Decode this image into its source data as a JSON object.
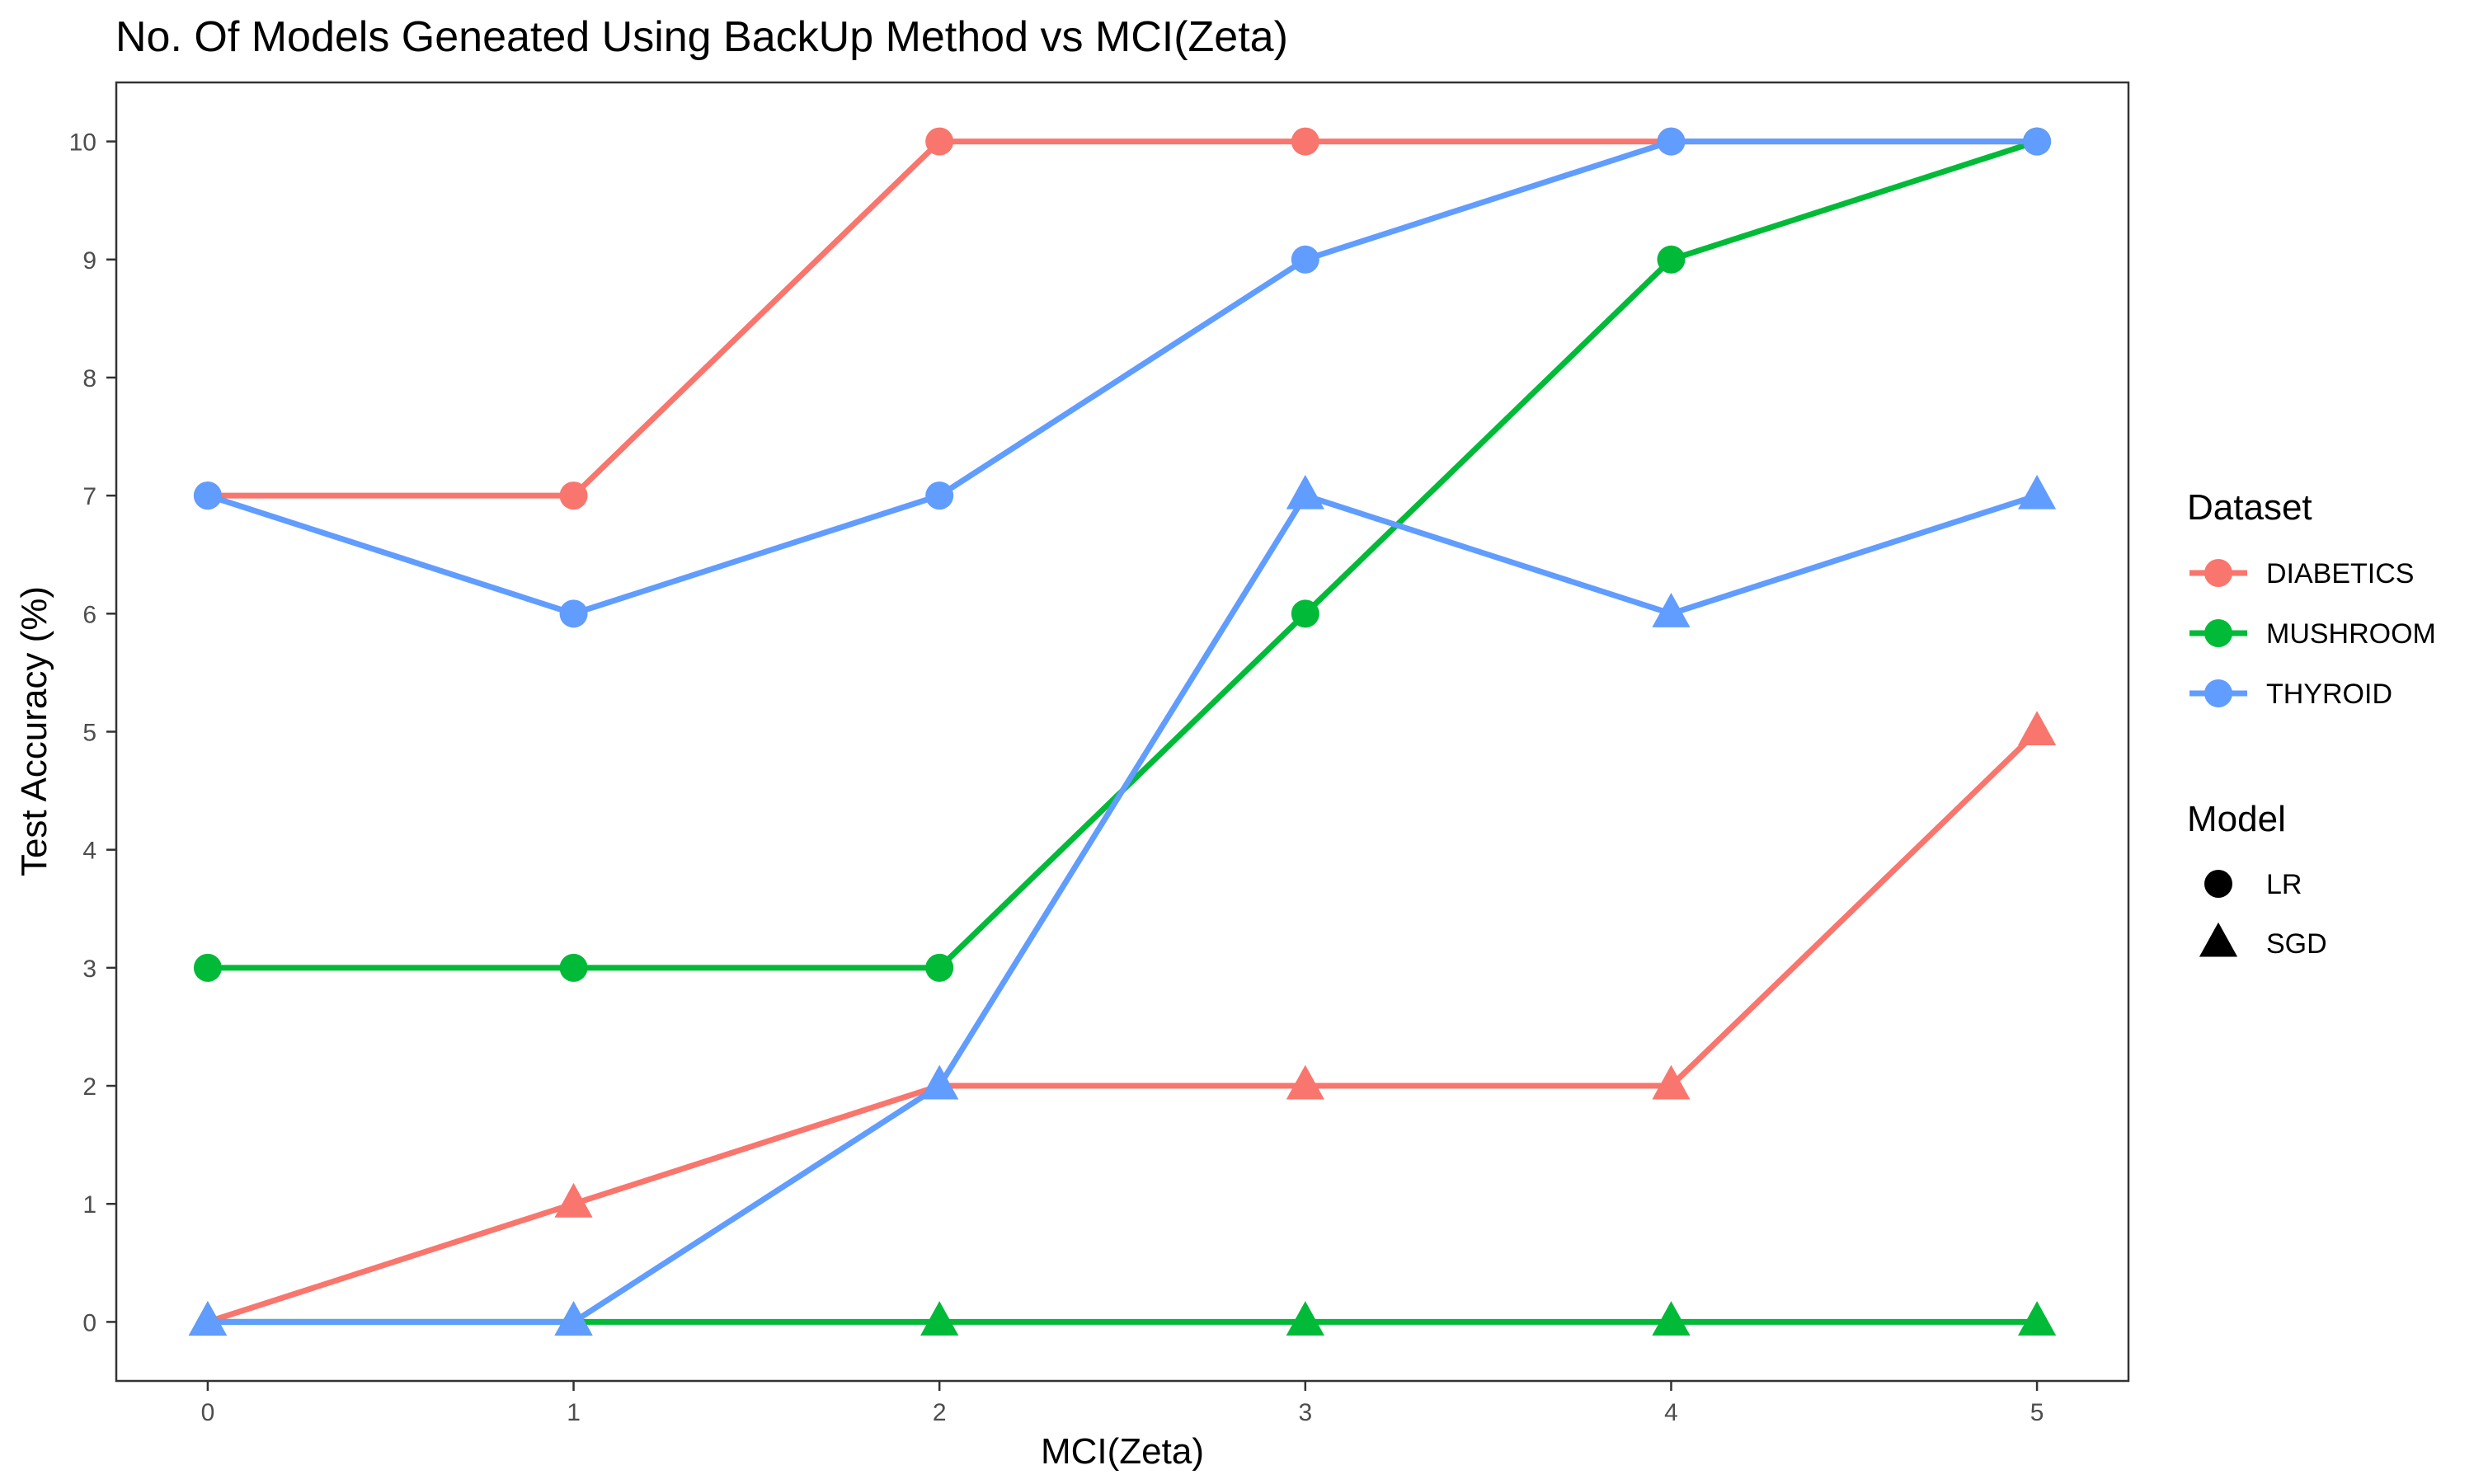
{
  "chart_data": {
    "type": "line",
    "title": "No. Of Models Geneated Using BackUp Method vs MCI(Zeta)",
    "xlabel": "MCI(Zeta)",
    "ylabel": "Test Accuracy (%)",
    "x": [
      0,
      1,
      2,
      3,
      4,
      5
    ],
    "xlim": [
      -0.25,
      5.25
    ],
    "ylim": [
      -0.5,
      10.5
    ],
    "y_ticks": [
      0,
      1,
      2,
      3,
      4,
      5,
      6,
      7,
      8,
      9,
      10
    ],
    "grid": false,
    "legend_position": "right",
    "colors": {
      "DIABETICS": "#F8766D",
      "MUSHROOM": "#00BA38",
      "THYROID": "#619CFF"
    },
    "legend": {
      "dataset_title": "Dataset",
      "datasets": [
        "DIABETICS",
        "MUSHROOM",
        "THYROID"
      ],
      "model_title": "Model",
      "models": [
        {
          "label": "LR",
          "shape": "circle"
        },
        {
          "label": "SGD",
          "shape": "triangle"
        }
      ]
    },
    "series": [
      {
        "dataset": "DIABETICS",
        "model": "LR",
        "shape": "circle",
        "values": [
          7,
          7,
          10,
          10,
          10,
          10
        ]
      },
      {
        "dataset": "DIABETICS",
        "model": "SGD",
        "shape": "triangle",
        "values": [
          0,
          1,
          2,
          2,
          2,
          5
        ]
      },
      {
        "dataset": "MUSHROOM",
        "model": "LR",
        "shape": "circle",
        "values": [
          3,
          3,
          3,
          6,
          9,
          10
        ]
      },
      {
        "dataset": "MUSHROOM",
        "model": "SGD",
        "shape": "triangle",
        "values": [
          0,
          0,
          0,
          0,
          0,
          0
        ]
      },
      {
        "dataset": "THYROID",
        "model": "LR",
        "shape": "circle",
        "values": [
          7,
          6,
          7,
          9,
          10,
          10
        ]
      },
      {
        "dataset": "THYROID",
        "model": "SGD",
        "shape": "triangle",
        "values": [
          0,
          0,
          2,
          7,
          6,
          7
        ]
      }
    ]
  }
}
